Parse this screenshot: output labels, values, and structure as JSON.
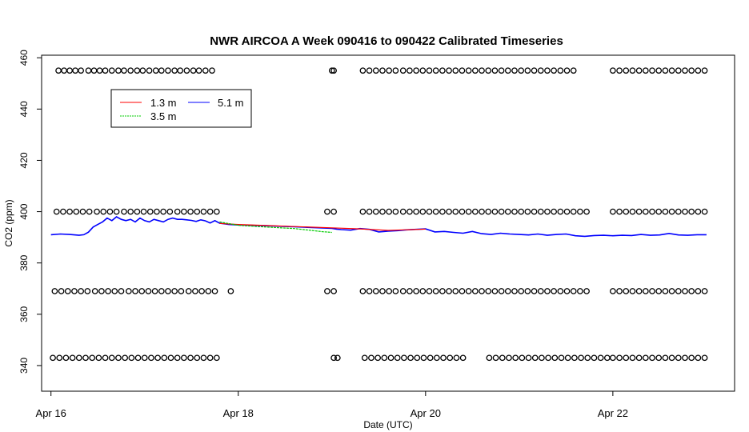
{
  "chart_data": {
    "type": "line",
    "title": "NWR AIRCOA A  Week 090416 to 090422  Calibrated Timeseries",
    "xlabel": "Date (UTC)",
    "ylabel": "CO2 (ppm)",
    "x_unit": "days since Apr 16 00:00 UTC",
    "xlim": [
      -0.1,
      7.3
    ],
    "ylim": [
      330,
      461
    ],
    "x_ticks": [
      {
        "value": 0,
        "label": "Apr 16"
      },
      {
        "value": 2,
        "label": "Apr 18"
      },
      {
        "value": 4,
        "label": "Apr 20"
      },
      {
        "value": 6,
        "label": "Apr 22"
      }
    ],
    "y_ticks": [
      340,
      360,
      380,
      400,
      420,
      440,
      460
    ],
    "grid": false,
    "legend": {
      "position": "top-left",
      "entries": [
        {
          "label": "1.3 m",
          "color": "#ff0000"
        },
        {
          "label": "5.1 m",
          "color": "#0000ff"
        },
        {
          "label": "3.5 m",
          "color": "#00cc00"
        }
      ]
    },
    "series": [
      {
        "name": "5.1 m",
        "color": "#0000ff",
        "x": [
          0.0,
          0.1,
          0.2,
          0.3,
          0.35,
          0.4,
          0.45,
          0.5,
          0.55,
          0.6,
          0.65,
          0.7,
          0.75,
          0.8,
          0.85,
          0.9,
          0.95,
          1.0,
          1.05,
          1.1,
          1.15,
          1.2,
          1.25,
          1.3,
          1.35,
          1.4,
          1.45,
          1.5,
          1.55,
          1.6,
          1.65,
          1.7,
          1.75,
          1.8,
          1.9,
          2.0,
          2.3,
          2.6,
          3.0,
          3.05,
          3.1,
          3.2,
          3.3,
          3.4,
          3.5,
          3.6,
          3.7,
          3.8,
          3.9,
          4.0,
          4.1,
          4.2,
          4.3,
          4.4,
          4.5,
          4.6,
          4.7,
          4.8,
          4.9,
          5.0,
          5.1,
          5.2,
          5.3,
          5.4,
          5.5,
          5.6,
          5.7,
          5.8,
          5.9,
          6.0,
          6.1,
          6.2,
          6.3,
          6.4,
          6.5,
          6.6,
          6.7,
          6.8,
          6.9,
          7.0
        ],
        "values": [
          391,
          391.3,
          391.1,
          390.8,
          391,
          392,
          394,
          395,
          396,
          397.5,
          396.5,
          398,
          397,
          396.5,
          397,
          396,
          397.5,
          396.5,
          396,
          397,
          396.5,
          396,
          397,
          397.5,
          397,
          397,
          396.8,
          396.6,
          396.2,
          396.8,
          396.4,
          395.6,
          396.5,
          395.5,
          395,
          394.8,
          394.5,
          394.1,
          393.5,
          393.2,
          393,
          392.8,
          393.4,
          393.1,
          392.1,
          392.4,
          392.6,
          392.9,
          393.1,
          393.3,
          392.1,
          392.3,
          391.9,
          391.6,
          392.3,
          391.4,
          391.1,
          391.6,
          391.3,
          391.1,
          390.9,
          391.3,
          390.8,
          391.1,
          391.3,
          390.6,
          390.4,
          390.7,
          390.8,
          390.6,
          390.8,
          390.7,
          391.1,
          390.8,
          390.9,
          391.5,
          390.9,
          390.8,
          391,
          391
        ]
      },
      {
        "name": "1.3 m",
        "color": "#ff0000",
        "x": [
          1.8,
          2.0,
          2.3,
          2.6,
          3.0,
          3.3,
          3.6,
          4.0
        ],
        "values": [
          395.4,
          395,
          394.6,
          394.2,
          393.7,
          393.3,
          392.7,
          393.2
        ]
      },
      {
        "name": "3.5 m",
        "color": "#00cc00",
        "x": [
          1.8,
          2.0,
          2.3,
          2.6,
          2.8,
          2.9,
          3.0
        ],
        "values": [
          396,
          394.7,
          394,
          393.4,
          392.6,
          392.2,
          391.9
        ]
      },
      {
        "name": "marker 455",
        "style": "points",
        "x": [
          0.08,
          0.14,
          0.2,
          0.26,
          0.32,
          0.4,
          0.46,
          0.52,
          0.58,
          0.65,
          0.72,
          0.78,
          0.85,
          0.92,
          0.98,
          1.05,
          1.12,
          1.18,
          1.25,
          1.32,
          1.38,
          1.45,
          1.52,
          1.58,
          1.65,
          1.72,
          3.0,
          3.02,
          3.33,
          3.4,
          3.47,
          3.54,
          3.61,
          3.68,
          3.76,
          3.83,
          3.9,
          3.97,
          4.04,
          4.11,
          4.18,
          4.25,
          4.32,
          4.39,
          4.46,
          4.53,
          4.6,
          4.67,
          4.74,
          4.81,
          4.88,
          4.95,
          5.02,
          5.09,
          5.16,
          5.23,
          5.3,
          5.37,
          5.44,
          5.51,
          5.58,
          6.0,
          6.07,
          6.14,
          6.21,
          6.28,
          6.35,
          6.42,
          6.49,
          6.56,
          6.63,
          6.7,
          6.77,
          6.84,
          6.91,
          6.98
        ],
        "values": [
          455,
          455,
          455,
          455,
          455,
          455,
          455,
          455,
          455,
          455,
          455,
          455,
          455,
          455,
          455,
          455,
          455,
          455,
          455,
          455,
          455,
          455,
          455,
          455,
          455,
          455,
          455,
          455,
          455,
          455,
          455,
          455,
          455,
          455,
          455,
          455,
          455,
          455,
          455,
          455,
          455,
          455,
          455,
          455,
          455,
          455,
          455,
          455,
          455,
          455,
          455,
          455,
          455,
          455,
          455,
          455,
          455,
          455,
          455,
          455,
          455,
          455,
          455,
          455,
          455,
          455,
          455,
          455,
          455,
          455,
          455,
          455,
          455,
          455,
          455,
          455
        ]
      },
      {
        "name": "marker 400",
        "style": "points",
        "x": [
          0.06,
          0.13,
          0.2,
          0.27,
          0.34,
          0.41,
          0.49,
          0.56,
          0.63,
          0.7,
          0.78,
          0.85,
          0.92,
          0.99,
          1.06,
          1.13,
          1.2,
          1.27,
          1.35,
          1.42,
          1.49,
          1.56,
          1.63,
          1.7,
          1.77,
          2.95,
          3.02,
          3.33,
          3.4,
          3.47,
          3.54,
          3.61,
          3.68,
          3.76,
          3.83,
          3.9,
          3.97,
          4.04,
          4.11,
          4.18,
          4.25,
          4.32,
          4.39,
          4.46,
          4.53,
          4.6,
          4.67,
          4.74,
          4.81,
          4.88,
          4.95,
          5.02,
          5.09,
          5.16,
          5.23,
          5.3,
          5.37,
          5.44,
          5.51,
          5.58,
          5.65,
          5.72,
          6.0,
          6.07,
          6.14,
          6.21,
          6.28,
          6.35,
          6.42,
          6.49,
          6.56,
          6.63,
          6.7,
          6.77,
          6.84,
          6.91,
          6.98
        ],
        "values": [
          400,
          400,
          400,
          400,
          400,
          400,
          400,
          400,
          400,
          400,
          400,
          400,
          400,
          400,
          400,
          400,
          400,
          400,
          400,
          400,
          400,
          400,
          400,
          400,
          400,
          400,
          400,
          400,
          400,
          400,
          400,
          400,
          400,
          400,
          400,
          400,
          400,
          400,
          400,
          400,
          400,
          400,
          400,
          400,
          400,
          400,
          400,
          400,
          400,
          400,
          400,
          400,
          400,
          400,
          400,
          400,
          400,
          400,
          400,
          400,
          400,
          400,
          400,
          400,
          400,
          400,
          400,
          400,
          400,
          400,
          400,
          400,
          400,
          400,
          400,
          400,
          400
        ]
      },
      {
        "name": "marker 369",
        "style": "points",
        "x": [
          0.04,
          0.11,
          0.18,
          0.25,
          0.32,
          0.39,
          0.47,
          0.54,
          0.61,
          0.68,
          0.75,
          0.83,
          0.9,
          0.97,
          1.04,
          1.11,
          1.18,
          1.25,
          1.32,
          1.39,
          1.47,
          1.54,
          1.61,
          1.68,
          1.75,
          1.92,
          2.95,
          3.02,
          3.33,
          3.4,
          3.47,
          3.54,
          3.61,
          3.68,
          3.76,
          3.83,
          3.9,
          3.97,
          4.04,
          4.11,
          4.18,
          4.25,
          4.32,
          4.39,
          4.46,
          4.53,
          4.6,
          4.67,
          4.74,
          4.81,
          4.88,
          4.95,
          5.02,
          5.09,
          5.16,
          5.23,
          5.3,
          5.37,
          5.44,
          5.51,
          5.58,
          5.65,
          5.72,
          6.0,
          6.07,
          6.14,
          6.21,
          6.28,
          6.35,
          6.42,
          6.49,
          6.56,
          6.63,
          6.7,
          6.77,
          6.84,
          6.91,
          6.98
        ],
        "values": [
          369,
          369,
          369,
          369,
          369,
          369,
          369,
          369,
          369,
          369,
          369,
          369,
          369,
          369,
          369,
          369,
          369,
          369,
          369,
          369,
          369,
          369,
          369,
          369,
          369,
          369,
          369,
          369,
          369,
          369,
          369,
          369,
          369,
          369,
          369,
          369,
          369,
          369,
          369,
          369,
          369,
          369,
          369,
          369,
          369,
          369,
          369,
          369,
          369,
          369,
          369,
          369,
          369,
          369,
          369,
          369,
          369,
          369,
          369,
          369,
          369,
          369,
          369,
          369,
          369,
          369,
          369,
          369,
          369,
          369,
          369,
          369,
          369,
          369,
          369,
          369,
          369,
          369
        ]
      },
      {
        "name": "marker 343",
        "style": "points",
        "x": [
          0.02,
          0.09,
          0.16,
          0.23,
          0.3,
          0.37,
          0.44,
          0.51,
          0.58,
          0.65,
          0.72,
          0.79,
          0.86,
          0.93,
          1.0,
          1.07,
          1.14,
          1.21,
          1.28,
          1.35,
          1.42,
          1.49,
          1.56,
          1.63,
          1.7,
          1.77,
          3.02,
          3.06,
          3.35,
          3.42,
          3.49,
          3.56,
          3.63,
          3.7,
          3.77,
          3.84,
          3.91,
          3.98,
          4.05,
          4.12,
          4.19,
          4.26,
          4.33,
          4.4,
          4.68,
          4.75,
          4.82,
          4.89,
          4.96,
          5.03,
          5.1,
          5.17,
          5.24,
          5.31,
          5.38,
          5.45,
          5.52,
          5.59,
          5.66,
          5.73,
          5.8,
          5.87,
          5.94,
          6.0,
          6.07,
          6.14,
          6.21,
          6.28,
          6.35,
          6.42,
          6.49,
          6.56,
          6.63,
          6.7,
          6.77,
          6.84,
          6.91,
          6.98
        ],
        "values": [
          343,
          343,
          343,
          343,
          343,
          343,
          343,
          343,
          343,
          343,
          343,
          343,
          343,
          343,
          343,
          343,
          343,
          343,
          343,
          343,
          343,
          343,
          343,
          343,
          343,
          343,
          343,
          343,
          343,
          343,
          343,
          343,
          343,
          343,
          343,
          343,
          343,
          343,
          343,
          343,
          343,
          343,
          343,
          343,
          343,
          343,
          343,
          343,
          343,
          343,
          343,
          343,
          343,
          343,
          343,
          343,
          343,
          343,
          343,
          343,
          343,
          343,
          343,
          343,
          343,
          343,
          343,
          343,
          343,
          343,
          343,
          343,
          343,
          343,
          343,
          343,
          343,
          343
        ]
      }
    ]
  }
}
